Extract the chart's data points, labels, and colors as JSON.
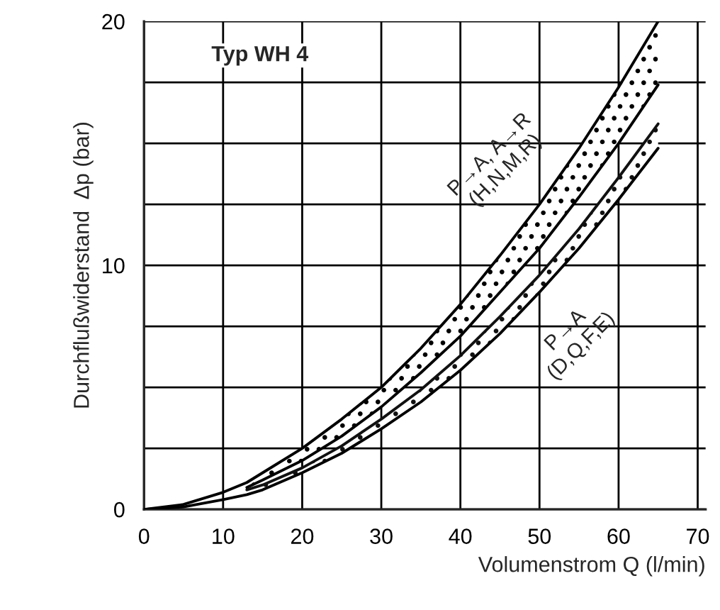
{
  "chart_data": {
    "type": "line",
    "title": "Typ WH 4",
    "xlabel": "Volumenstrom Q (l/min)",
    "ylabel": "Durchflußwiderstand  Δp (bar)",
    "x": [
      0,
      5,
      10,
      13,
      15,
      20,
      25,
      30,
      35,
      40,
      45,
      50,
      55,
      60,
      65
    ],
    "series": [
      {
        "color": "#000000",
        "values": [
          0,
          0.2,
          0.7,
          1.1,
          1.5,
          2.5,
          3.7,
          5.0,
          6.6,
          8.4,
          10.4,
          12.5,
          14.8,
          17.3,
          20.0
        ],
        "lower": [
          null,
          null,
          null,
          0.9,
          1.2,
          2.0,
          3.0,
          4.2,
          5.6,
          7.1,
          8.9,
          10.7,
          12.8,
          15.0,
          17.4
        ],
        "upper": [
          null,
          null,
          null,
          1.1,
          1.5,
          2.5,
          3.7,
          5.0,
          6.6,
          8.4,
          10.4,
          12.5,
          14.8,
          17.3,
          20.0
        ]
      },
      {
        "color": "#000000",
        "values": [
          null,
          null,
          null,
          0.9,
          1.2,
          2.0,
          3.0,
          4.2,
          5.6,
          7.1,
          8.9,
          10.7,
          12.8,
          15.0,
          17.4
        ]
      },
      {
        "color": "#111111",
        "values": [
          null,
          null,
          null,
          0.8,
          1.0,
          1.7,
          2.6,
          3.7,
          4.9,
          6.3,
          7.9,
          9.6,
          11.5,
          13.6,
          15.8
        ],
        "lower": [
          null,
          null,
          null,
          0.6,
          0.8,
          1.5,
          2.3,
          3.3,
          4.4,
          5.7,
          7.2,
          8.9,
          10.7,
          12.7,
          14.8
        ],
        "upper": [
          null,
          null,
          null,
          0.8,
          1.0,
          1.7,
          2.6,
          3.7,
          4.9,
          6.3,
          7.9,
          9.6,
          11.5,
          13.6,
          15.8
        ]
      },
      {
        "color": "#000000",
        "values": [
          0,
          0.1,
          0.4,
          0.6,
          0.8,
          1.5,
          2.3,
          3.3,
          4.4,
          5.7,
          7.2,
          8.9,
          10.7,
          12.7,
          14.8
        ]
      }
    ],
    "annotations": [
      "P→A, A→R\n(H,N,M,R)",
      "P→A\n(D,Q,F,E)"
    ],
    "xlim": [
      0,
      71
    ],
    "ylim": [
      0,
      20
    ],
    "xticks": [
      0,
      10,
      20,
      30,
      40,
      50,
      60,
      70
    ],
    "yticks": [
      0,
      {
        "value": 2.5,
        "label": null
      },
      {
        "value": 5,
        "label": null
      },
      {
        "value": 7.5,
        "label": null
      },
      10,
      {
        "value": 12.5,
        "label": null
      },
      {
        "value": 15,
        "label": null
      },
      {
        "value": 17.5,
        "label": null
      },
      20
    ],
    "grid": true,
    "legend": false,
    "marker": "none",
    "line_style": "solid"
  }
}
